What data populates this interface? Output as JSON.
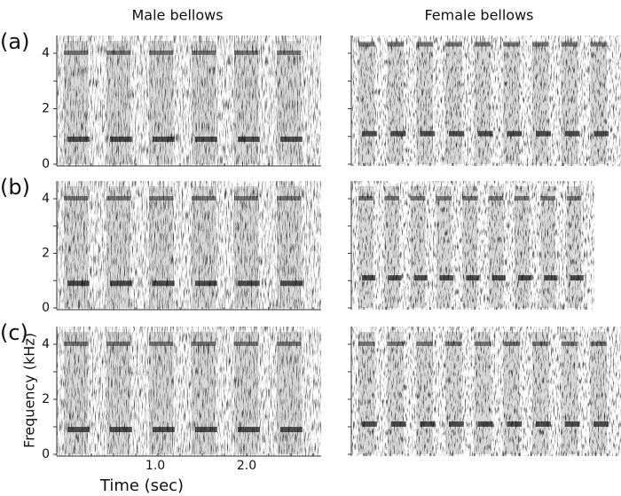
{
  "figure": {
    "column_titles": [
      "Male bellows",
      "Female bellows"
    ],
    "panels": [
      {
        "label": "(a)"
      },
      {
        "label": "(b)"
      },
      {
        "label": "(c)"
      }
    ],
    "y_ticks": [
      "0",
      "2",
      "4"
    ],
    "x_ticks": [
      "1.0",
      "2.0"
    ],
    "x_label": "Time (sec)",
    "y_label": "Frequency (kHz)"
  }
}
